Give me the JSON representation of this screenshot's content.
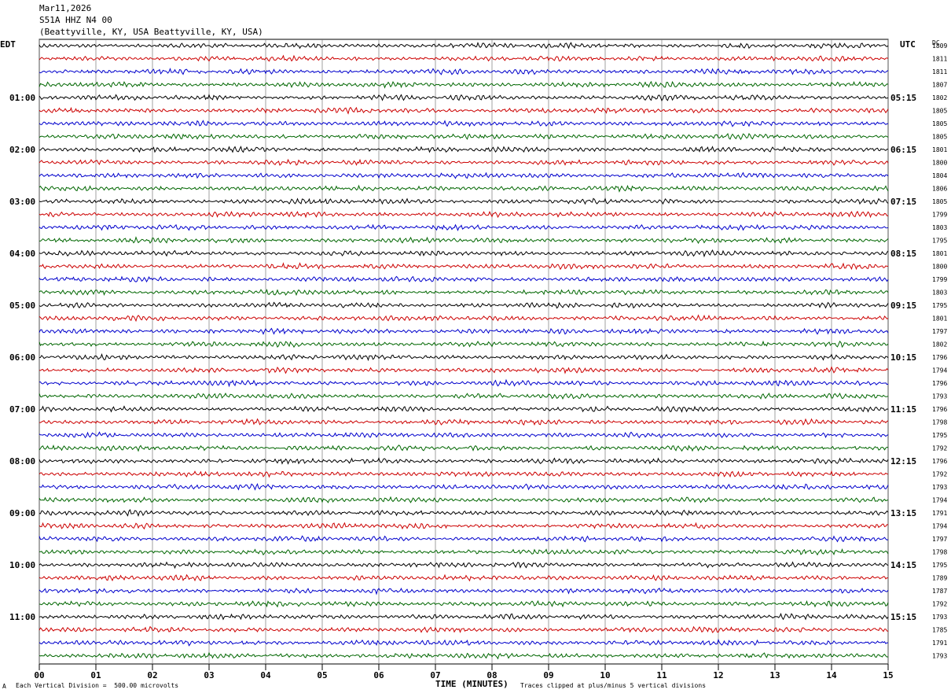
{
  "header": {
    "date": "Mar11,2026",
    "station": "S51A HHZ N4 00",
    "location": "(Beattyville, KY, USA Beattyville, KY, USA)"
  },
  "footer": {
    "scale_note": "Each Vertical Division =  500.00 microvolts",
    "clip_note": "Traces clipped at plus/minus 5 vertical divisions",
    "corner_mark": "A"
  },
  "chart_data": {
    "type": "line",
    "title": "",
    "xlabel": "TIME (MINUTES)",
    "ylabel_left": "EDT",
    "ylabel_right": "UTC",
    "right_col_header": "DC",
    "xlim": [
      0,
      15
    ],
    "x_ticks": [
      "00",
      "01",
      "02",
      "03",
      "04",
      "05",
      "06",
      "07",
      "08",
      "09",
      "10",
      "11",
      "12",
      "13",
      "14",
      "15"
    ],
    "grid": "vertical lines each minute",
    "trace_colors": [
      "#000000",
      "#cc0000",
      "#0000cc",
      "#006600"
    ],
    "edt_labels": [
      "01:00",
      "02:00",
      "03:00",
      "04:00",
      "05:00",
      "06:00",
      "07:00",
      "08:00",
      "09:00",
      "10:00",
      "11:00"
    ],
    "utc_labels": [
      "05:15",
      "06:15",
      "07:15",
      "08:15",
      "09:15",
      "10:15",
      "11:15",
      "12:15",
      "13:15",
      "14:15",
      "15:15"
    ],
    "dc_values": [
      "1809",
      "1811",
      "1811",
      "1807",
      "1802",
      "1805",
      "1805",
      "1805",
      "1801",
      "1800",
      "1804",
      "1806",
      "1805",
      "1799",
      "1803",
      "1795",
      "1801",
      "1800",
      "1799",
      "1803",
      "1795",
      "1801",
      "1797",
      "1802",
      "1796",
      "1794",
      "1796",
      "1793",
      "1796",
      "1798",
      "1795",
      "1792",
      "1796",
      "1792",
      "1793",
      "1794",
      "1791",
      "1794",
      "1797",
      "1798",
      "1795",
      "1789",
      "1787",
      "1792",
      "1793",
      "1785",
      "1791",
      "1793"
    ]
  }
}
